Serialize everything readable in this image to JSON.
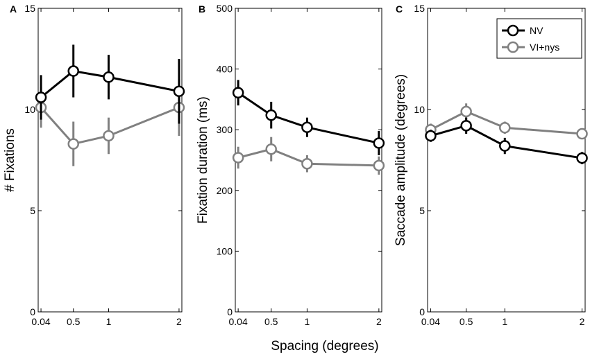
{
  "chart_data": [
    {
      "type": "line",
      "panel_letter": "A",
      "ylabel": "# Fixations",
      "xlabel": "",
      "x": [
        0.04,
        0.5,
        1,
        2
      ],
      "xticks": [
        "0.04",
        "0.5",
        "1",
        "2"
      ],
      "xlim": [
        0,
        2.04
      ],
      "ylim": [
        0,
        15
      ],
      "yticks": [
        "0",
        "5",
        "10",
        "15"
      ],
      "ytick_values": [
        0,
        5,
        10,
        15
      ],
      "series": [
        {
          "name": "NV",
          "color": "#000000",
          "values": [
            10.6,
            11.9,
            11.6,
            10.9
          ],
          "err": [
            1.1,
            1.3,
            1.1,
            1.6
          ]
        },
        {
          "name": "VI+nys",
          "color": "#808080",
          "values": [
            10.1,
            8.3,
            8.7,
            10.1
          ],
          "err": [
            1.0,
            1.1,
            0.9,
            1.4
          ]
        }
      ]
    },
    {
      "type": "line",
      "panel_letter": "B",
      "ylabel": "Fixation duration (ms)",
      "xlabel": "",
      "x": [
        0.04,
        0.5,
        1,
        2
      ],
      "xticks": [
        "0.04",
        "0.5",
        "1",
        "2"
      ],
      "xlim": [
        0,
        2.04
      ],
      "ylim": [
        0,
        500
      ],
      "yticks": [
        "0",
        "100",
        "200",
        "300",
        "400",
        "500"
      ],
      "ytick_values": [
        0,
        100,
        200,
        300,
        400,
        500
      ],
      "series": [
        {
          "name": "NV",
          "color": "#000000",
          "values": [
            361,
            324,
            304,
            278
          ],
          "err": [
            21,
            22,
            16,
            20
          ]
        },
        {
          "name": "VI+nys",
          "color": "#808080",
          "values": [
            254,
            268,
            244,
            241
          ],
          "err": [
            18,
            20,
            14,
            15
          ]
        }
      ]
    },
    {
      "type": "line",
      "panel_letter": "C",
      "ylabel": "Saccade amplitude (degrees)",
      "xlabel": "",
      "x": [
        0.04,
        0.5,
        1,
        2
      ],
      "xticks": [
        "0.04",
        "0.5",
        "1",
        "2"
      ],
      "xlim": [
        0,
        2.04
      ],
      "ylim": [
        0,
        15
      ],
      "yticks": [
        "0",
        "5",
        "10",
        "15"
      ],
      "ytick_values": [
        0,
        5,
        10,
        15
      ],
      "series": [
        {
          "name": "NV",
          "color": "#000000",
          "values": [
            8.7,
            9.2,
            8.2,
            7.6
          ],
          "err": [
            0.3,
            0.4,
            0.4,
            0.3
          ]
        },
        {
          "name": "VI+nys",
          "color": "#808080",
          "values": [
            9.0,
            9.9,
            9.1,
            8.8
          ],
          "err": [
            0.3,
            0.4,
            0.3,
            0.2
          ]
        }
      ]
    }
  ],
  "shared_xlabel": "Spacing (degrees)",
  "legend": {
    "location": "top-right of panel C",
    "entries": [
      {
        "name": "NV",
        "color": "#000000"
      },
      {
        "name": "VI+nys",
        "color": "#808080"
      }
    ]
  }
}
